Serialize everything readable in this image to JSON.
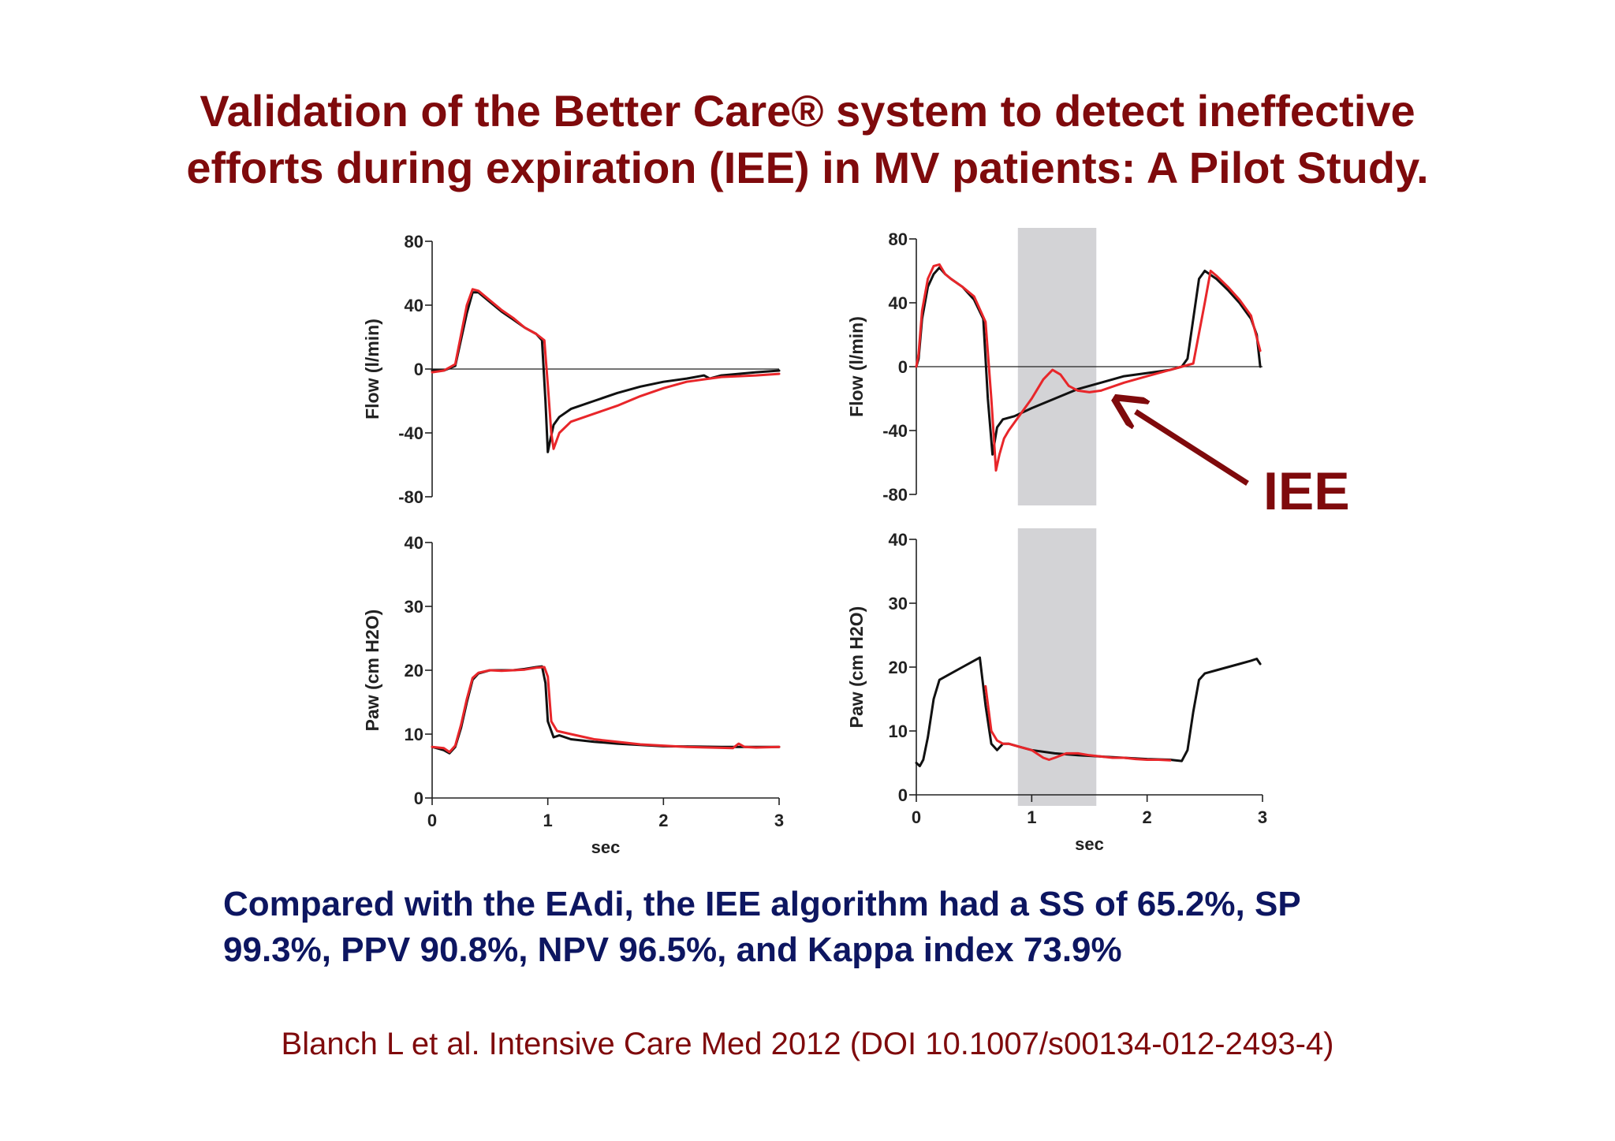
{
  "title": {
    "line1": "Validation of the Better Care® system to detect ineffective",
    "line2": "efforts during expiration (IEE) in MV patients: A Pilot Study."
  },
  "summary": {
    "line1": "Compared with the EAdi, the IEE algorithm had a SS of 65.2%, SP",
    "line2": "99.3%, PPV 90.8%, NPV 96.5%, and Kappa index 73.9%"
  },
  "citation": "Blanch L et al. Intensive Care Med 2012 (DOI 10.1007/s00134-012-2493-4)",
  "colors": {
    "title": "#7f0a0c",
    "summary": "#0d1661",
    "red_trace": "#e8262a",
    "black_trace": "#111111",
    "shade": "#d3d3d6"
  },
  "annotation": {
    "label": "IEE"
  },
  "chart_data": [
    {
      "id": "left-flow",
      "type": "line",
      "xlim": [
        0,
        3
      ],
      "ylim": [
        -80,
        80
      ],
      "yticks": [
        -80,
        -40,
        0,
        40,
        80
      ],
      "ylabel": "Flow (l/min)",
      "xlabel": "",
      "series": [
        {
          "color": "black",
          "x": [
            0,
            0.1,
            0.2,
            0.3,
            0.35,
            0.4,
            0.5,
            0.6,
            0.7,
            0.8,
            0.9,
            0.95,
            0.98,
            1.0,
            1.02,
            1.05,
            1.1,
            1.2,
            1.4,
            1.6,
            1.8,
            2.0,
            2.2,
            2.35,
            2.4,
            2.5,
            2.8,
            3.0
          ],
          "y": [
            -1,
            -1,
            2,
            35,
            48,
            48,
            42,
            36,
            31,
            26,
            22,
            18,
            -20,
            -52,
            -45,
            -35,
            -30,
            -25,
            -20,
            -15,
            -11,
            -8,
            -6,
            -4,
            -6,
            -4,
            -2,
            -1
          ]
        },
        {
          "color": "red",
          "x": [
            0,
            0.1,
            0.2,
            0.3,
            0.35,
            0.4,
            0.5,
            0.6,
            0.7,
            0.8,
            0.9,
            0.97,
            1.0,
            1.03,
            1.05,
            1.1,
            1.2,
            1.4,
            1.6,
            1.8,
            2.0,
            2.2,
            2.5,
            2.8,
            3.0
          ],
          "y": [
            -2,
            -1,
            3,
            40,
            50,
            49,
            43,
            37,
            32,
            26,
            22,
            18,
            -10,
            -40,
            -50,
            -40,
            -33,
            -28,
            -23,
            -17,
            -12,
            -8,
            -5,
            -4,
            -3
          ]
        }
      ]
    },
    {
      "id": "right-flow",
      "type": "line",
      "xlim": [
        0,
        3
      ],
      "ylim": [
        -80,
        80
      ],
      "yticks": [
        -80,
        -40,
        0,
        40,
        80
      ],
      "ylabel": "Flow (l/min)",
      "xlabel": "",
      "shaded_x": [
        0.88,
        1.56
      ],
      "series": [
        {
          "color": "black",
          "x": [
            0,
            0.02,
            0.05,
            0.1,
            0.15,
            0.2,
            0.25,
            0.3,
            0.4,
            0.5,
            0.58,
            0.62,
            0.66,
            0.7,
            0.75,
            0.85,
            1.0,
            1.2,
            1.4,
            1.6,
            1.8,
            2.0,
            2.2,
            2.3,
            2.35,
            2.4,
            2.45,
            2.5,
            2.6,
            2.7,
            2.8,
            2.9,
            2.95,
            2.98
          ],
          "y": [
            0,
            5,
            30,
            50,
            58,
            62,
            58,
            55,
            50,
            42,
            30,
            -20,
            -55,
            -38,
            -33,
            -31,
            -26,
            -20,
            -14,
            -10,
            -6,
            -4,
            -2,
            0,
            5,
            30,
            55,
            60,
            55,
            48,
            40,
            30,
            20,
            0
          ]
        },
        {
          "color": "red",
          "x": [
            0,
            0.02,
            0.05,
            0.1,
            0.15,
            0.2,
            0.25,
            0.3,
            0.4,
            0.5,
            0.6,
            0.65,
            0.69,
            0.72,
            0.76,
            0.8,
            0.9,
            1.0,
            1.1,
            1.18,
            1.25,
            1.32,
            1.4,
            1.5,
            1.6,
            1.8,
            2.0,
            2.2,
            2.3,
            2.4,
            2.5,
            2.55,
            2.6,
            2.7,
            2.8,
            2.9,
            2.98
          ],
          "y": [
            0,
            8,
            35,
            55,
            63,
            64,
            58,
            55,
            50,
            44,
            28,
            -20,
            -65,
            -55,
            -45,
            -40,
            -30,
            -20,
            -8,
            -2,
            -5,
            -12,
            -15,
            -16,
            -15,
            -10,
            -6,
            -2,
            0,
            2,
            40,
            60,
            57,
            50,
            42,
            32,
            10
          ]
        }
      ]
    },
    {
      "id": "left-paw",
      "type": "line",
      "xlim": [
        0,
        3
      ],
      "ylim": [
        0,
        40
      ],
      "xticks": [
        0,
        1,
        2,
        3
      ],
      "yticks": [
        0,
        10,
        20,
        30,
        40
      ],
      "ylabel": "Paw (cm H2O)",
      "xlabel": "sec",
      "series": [
        {
          "color": "black",
          "x": [
            0,
            0.1,
            0.15,
            0.2,
            0.25,
            0.3,
            0.35,
            0.4,
            0.5,
            0.6,
            0.7,
            0.8,
            0.9,
            0.95,
            0.98,
            1.0,
            1.05,
            1.1,
            1.2,
            1.4,
            1.6,
            1.8,
            2.0,
            2.5,
            2.9,
            3.0
          ],
          "y": [
            8,
            7.5,
            7,
            8,
            11,
            15,
            18.5,
            19.5,
            20,
            20,
            20,
            20.2,
            20.5,
            20.6,
            18,
            12,
            9.5,
            9.8,
            9.2,
            8.8,
            8.5,
            8.3,
            8.1,
            8,
            8,
            8
          ]
        },
        {
          "color": "red",
          "x": [
            0,
            0.1,
            0.15,
            0.2,
            0.25,
            0.3,
            0.35,
            0.4,
            0.5,
            0.6,
            0.7,
            0.8,
            0.9,
            0.97,
            1.0,
            1.03,
            1.08,
            1.2,
            1.4,
            1.6,
            1.8,
            2.0,
            2.2,
            2.4,
            2.6,
            2.65,
            2.7,
            2.8,
            3.0
          ],
          "y": [
            8,
            7.8,
            7.2,
            8.2,
            11.5,
            15.5,
            18.8,
            19.6,
            20,
            19.9,
            20,
            20.1,
            20.4,
            20.5,
            19,
            12,
            10.5,
            10,
            9.2,
            8.8,
            8.4,
            8.2,
            8,
            7.9,
            7.8,
            8.5,
            8,
            7.9,
            8
          ]
        }
      ]
    },
    {
      "id": "right-paw",
      "type": "line",
      "xlim": [
        0,
        3
      ],
      "ylim": [
        0,
        40
      ],
      "xticks": [
        0,
        1,
        2,
        3
      ],
      "yticks": [
        0,
        10,
        20,
        30,
        40
      ],
      "ylabel": "Paw (cm H2O)",
      "xlabel": "sec",
      "shaded_x": [
        0.88,
        1.56
      ],
      "series": [
        {
          "color": "black",
          "x": [
            0,
            0.03,
            0.06,
            0.1,
            0.15,
            0.2,
            0.3,
            0.4,
            0.5,
            0.55,
            0.6,
            0.65,
            0.7,
            0.75,
            0.8,
            0.9,
            1.0,
            1.2,
            1.4,
            1.6,
            1.8,
            2.0,
            2.2,
            2.3,
            2.35,
            2.4,
            2.45,
            2.5,
            2.6,
            2.8,
            2.9,
            2.95,
            2.98
          ],
          "y": [
            5,
            4.5,
            5.5,
            9,
            15,
            18,
            19,
            20,
            21,
            21.5,
            14,
            8,
            7,
            8,
            8,
            7.5,
            7,
            6.5,
            6.2,
            6,
            5.8,
            5.6,
            5.5,
            5.3,
            7,
            13,
            18,
            19,
            19.5,
            20.5,
            21,
            21.3,
            20.5
          ]
        },
        {
          "color": "red",
          "x": [
            0.6,
            0.65,
            0.7,
            0.75,
            0.8,
            0.9,
            1.0,
            1.1,
            1.15,
            1.2,
            1.3,
            1.4,
            1.5,
            1.6,
            1.7,
            1.8,
            1.9,
            2.0,
            2.1,
            2.2
          ],
          "y": [
            17,
            10,
            8.5,
            8,
            8,
            7.5,
            7,
            5.8,
            5.5,
            5.8,
            6.5,
            6.5,
            6.2,
            6,
            5.8,
            5.8,
            5.6,
            5.5,
            5.5,
            5.4
          ]
        }
      ]
    }
  ]
}
